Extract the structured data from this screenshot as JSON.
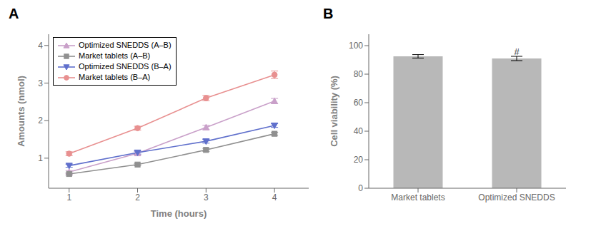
{
  "chart_data": [
    {
      "type": "line",
      "title": "A",
      "xlabel": "Time (hours)",
      "ylabel": "Amounts (nmol)",
      "x": [
        1,
        2,
        3,
        4
      ],
      "xlim": [
        0.7,
        4.5
      ],
      "ylim": [
        0.2,
        4.3
      ],
      "xticks": [
        1,
        2,
        3,
        4
      ],
      "yticks": [
        1,
        2,
        3,
        4
      ],
      "legend": "upper left",
      "series": [
        {
          "name": "Optimized SNEDDS (A–B)",
          "color": "#c9a0c9",
          "marker": "triangle-up",
          "values": [
            0.63,
            1.13,
            1.82,
            2.52
          ],
          "yerr": [
            0.04,
            0.04,
            0.06,
            0.07
          ]
        },
        {
          "name": "Market tablets (A–B)",
          "color": "#909090",
          "marker": "square",
          "values": [
            0.58,
            0.83,
            1.22,
            1.65
          ],
          "yerr": [
            0.03,
            0.03,
            0.04,
            0.04
          ]
        },
        {
          "name": "Optimized SNEDDS (B–A)",
          "color": "#6070cc",
          "marker": "triangle-down",
          "values": [
            0.8,
            1.15,
            1.45,
            1.87
          ],
          "yerr": [
            0.04,
            0.04,
            0.05,
            0.05
          ]
        },
        {
          "name": "Market tablets (B–A)",
          "color": "#e89090",
          "marker": "circle",
          "values": [
            1.12,
            1.8,
            2.6,
            3.22
          ],
          "yerr": [
            0.05,
            0.05,
            0.07,
            0.1
          ]
        }
      ]
    },
    {
      "type": "bar",
      "title": "B",
      "ylabel": "Cell viability (%)",
      "categories": [
        "Market tablets",
        "Optimized SNEDDS"
      ],
      "values": [
        92.5,
        91.0
      ],
      "yerr": [
        1.2,
        1.5
      ],
      "color": "#b8b8b8",
      "ylim": [
        0,
        108
      ],
      "yticks": [
        0,
        20,
        40,
        60,
        80,
        100
      ],
      "annotations": [
        {
          "text": "#",
          "x": "Optimized SNEDDS",
          "y": 93.5
        }
      ]
    }
  ]
}
